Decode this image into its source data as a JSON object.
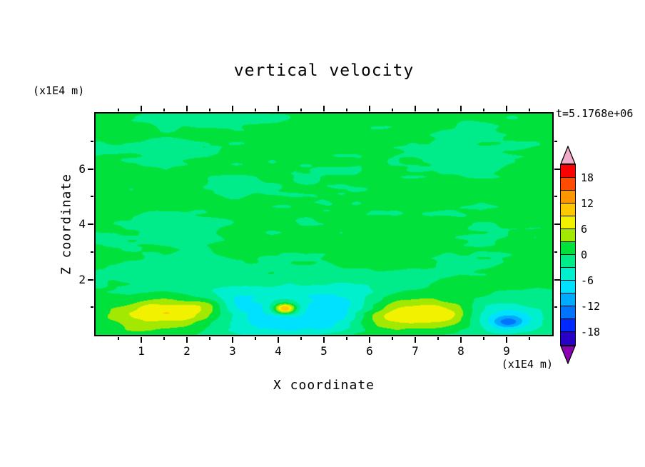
{
  "chart_data": {
    "type": "heatmap",
    "title": "vertical velocity",
    "xlabel": "X coordinate",
    "ylabel": "Z coordinate",
    "x_axis_unit": "(x1E4 m)",
    "y_axis_unit": "(x1E4 m)",
    "time_annotation": "t=5.1768e+06",
    "xlim": [
      0,
      10
    ],
    "ylim": [
      0,
      8
    ],
    "x_ticks": [
      1,
      2,
      3,
      4,
      5,
      6,
      7,
      8,
      9
    ],
    "x_minor_step": 0.5,
    "y_ticks": [
      2,
      4,
      6
    ],
    "y_minor_step": 1,
    "colorbar": {
      "tick_labels": [
        "18",
        "12",
        "6",
        "0",
        "-6",
        "-12",
        "-18"
      ],
      "levels": [
        -21,
        -18,
        -15,
        -12,
        -9,
        -6,
        -3,
        0,
        3,
        6,
        9,
        12,
        15,
        18,
        21
      ],
      "colors": [
        "#8c00b4",
        "#2800c8",
        "#0028ff",
        "#0073ff",
        "#00aaff",
        "#00e1ff",
        "#00f0cd",
        "#00ec8b",
        "#00e13c",
        "#a3e800",
        "#f2f200",
        "#ffc800",
        "#ff9600",
        "#ff4b00",
        "#ff0000",
        "#f2aac8"
      ]
    },
    "field": {
      "seed": 11,
      "background_mean": 0.4,
      "noise_amplitude": [
        1.35,
        0.9,
        0.6
      ],
      "noise_scales_x": [
        0.6,
        1.3,
        2.6
      ],
      "noise_scales_y": [
        1.5,
        3.2,
        6.5
      ],
      "blobs": [
        [
          1.15,
          0.85,
          0.55,
          0.36,
          5.0
        ],
        [
          2.0,
          0.8,
          0.5,
          0.32,
          4.8
        ],
        [
          2.45,
          1.05,
          0.32,
          0.22,
          4.0
        ],
        [
          1.55,
          0.55,
          1.05,
          0.5,
          2.0
        ],
        [
          4.15,
          0.95,
          0.17,
          0.13,
          16.0
        ],
        [
          4.15,
          0.95,
          0.5,
          0.32,
          4.0
        ],
        [
          7.0,
          0.85,
          0.8,
          0.42,
          5.5
        ],
        [
          7.75,
          0.72,
          0.45,
          0.3,
          4.5
        ],
        [
          6.45,
          0.6,
          0.55,
          0.32,
          3.5
        ],
        [
          3.65,
          0.75,
          0.7,
          0.45,
          -7.0
        ],
        [
          4.7,
          0.5,
          0.55,
          0.35,
          -3.5
        ],
        [
          5.35,
          0.9,
          0.5,
          0.32,
          -4.0
        ],
        [
          5.0,
          1.15,
          0.9,
          0.5,
          -3.0
        ],
        [
          3.1,
          1.15,
          0.5,
          0.3,
          -3.0
        ],
        [
          9.0,
          0.5,
          0.5,
          0.32,
          -7.5
        ],
        [
          9.05,
          0.45,
          0.2,
          0.14,
          -5.0
        ],
        [
          8.55,
          0.85,
          0.75,
          0.45,
          -3.0
        ],
        [
          2.2,
          1.95,
          1.3,
          0.5,
          -2.2
        ],
        [
          5.2,
          1.6,
          1.6,
          0.55,
          -2.2
        ],
        [
          4.3,
          0.22,
          1.5,
          0.3,
          -3.0
        ]
      ]
    }
  }
}
